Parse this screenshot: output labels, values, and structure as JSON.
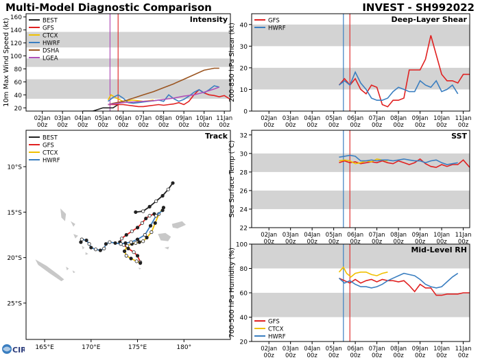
{
  "header": {
    "title_left": "Multi-Model Diagnostic Comparison",
    "title_right": "INVEST - SH992022"
  },
  "logo": {
    "text": "CIRA"
  },
  "colors": {
    "BEST": "#222222",
    "GFS": "#e02020",
    "CTCX": "#f0c000",
    "HWRF": "#3a7ec0",
    "DSHA": "#9b5520",
    "LGEA": "#b050b8",
    "band": "#d3d3d3",
    "vline_blue": "#3a7ec0",
    "vline_red": "#e03030",
    "vline_purple": "#b050b8",
    "land": "#c8c8c8"
  },
  "time_axis": {
    "ticks": [
      {
        "date": "02Jan",
        "hour": "00z",
        "x": 2
      },
      {
        "date": "03Jan",
        "hour": "00z",
        "x": 3
      },
      {
        "date": "04Jan",
        "hour": "00z",
        "x": 4
      },
      {
        "date": "05Jan",
        "hour": "00z",
        "x": 5
      },
      {
        "date": "06Jan",
        "hour": "00z",
        "x": 6
      },
      {
        "date": "07Jan",
        "hour": "00z",
        "x": 7
      },
      {
        "date": "08Jan",
        "hour": "00z",
        "x": 8
      },
      {
        "date": "09Jan",
        "hour": "00z",
        "x": 9
      },
      {
        "date": "10Jan",
        "hour": "00z",
        "x": 10
      },
      {
        "date": "11Jan",
        "hour": "00z",
        "x": 11
      }
    ]
  },
  "chart_data": [
    {
      "id": "intensity",
      "type": "line",
      "title": "Intensity",
      "ylabel": "10m Max Wind Speed (kt)",
      "xlim": [
        1.2,
        11.3
      ],
      "ylim": [
        15,
        165
      ],
      "yticks": [
        20,
        40,
        60,
        80,
        100,
        120,
        140,
        160
      ],
      "bands": [
        [
          34,
          64
        ],
        [
          83,
          96
        ],
        [
          113,
          137
        ]
      ],
      "vlines": [
        {
          "x": 5.35,
          "color": "vline_purple"
        },
        {
          "x": 5.75,
          "color": "vline_red"
        }
      ],
      "legend": [
        "BEST",
        "GFS",
        "CTCX",
        "HWRF",
        "DSHA",
        "LGEA"
      ],
      "series": [
        {
          "name": "BEST",
          "x": [
            4.0,
            4.5,
            5.0,
            5.5,
            5.75
          ],
          "y": [
            15,
            15,
            20,
            20,
            25
          ]
        },
        {
          "name": "GFS",
          "x": [
            5.25,
            5.5,
            5.75,
            6.0,
            6.25,
            6.5,
            6.75,
            7.0,
            7.25,
            7.5,
            7.75,
            8.0,
            8.25,
            8.5,
            8.75,
            9.0,
            9.25,
            9.5,
            9.75,
            10.0,
            10.25,
            10.5,
            10.75,
            11.0,
            11.3
          ],
          "y": [
            25,
            25,
            25,
            25,
            24,
            23,
            22,
            22,
            23,
            24,
            25,
            24,
            25,
            26,
            28,
            25,
            30,
            40,
            48,
            43,
            40,
            39,
            37,
            39,
            33
          ]
        },
        {
          "name": "CTCX",
          "x": [
            5.25,
            5.4,
            5.6,
            5.8,
            6.0,
            6.25,
            6.5,
            6.75,
            7.0,
            7.25,
            7.5
          ],
          "y": [
            32,
            40,
            36,
            33,
            30,
            31,
            32,
            31,
            30,
            31,
            32
          ]
        },
        {
          "name": "HWRF",
          "x": [
            5.25,
            5.5,
            5.75,
            6.0,
            6.25,
            6.5,
            6.75,
            7.0,
            7.25,
            7.5,
            7.75,
            8.0,
            8.25,
            8.5,
            8.75,
            9.0,
            9.25,
            9.5,
            9.75,
            10.0,
            10.25,
            10.5,
            10.75
          ],
          "y": [
            30,
            36,
            40,
            35,
            28,
            27,
            28,
            29,
            30,
            31,
            32,
            30,
            40,
            34,
            30,
            33,
            38,
            44,
            48,
            43,
            48,
            54,
            52
          ]
        },
        {
          "name": "DSHA",
          "x": [
            5.25,
            5.5,
            6.0,
            6.5,
            7.0,
            7.5,
            8.0,
            8.5,
            9.0,
            9.5,
            10.0,
            10.5,
            10.75
          ],
          "y": [
            25,
            27,
            30,
            35,
            40,
            45,
            51,
            57,
            64,
            71,
            78,
            81,
            81
          ]
        },
        {
          "name": "LGEA",
          "x": [
            5.25,
            5.5,
            6.0,
            6.5,
            7.0,
            7.5,
            8.0,
            8.5,
            9.0,
            9.5,
            10.0,
            10.5,
            10.75
          ],
          "y": [
            25,
            26,
            28,
            29,
            30,
            31,
            33,
            35,
            38,
            40,
            44,
            49,
            52
          ]
        }
      ]
    },
    {
      "id": "shear",
      "type": "line",
      "title": "Deep-Layer Shear",
      "ylabel": "200-850 hPa Shear (kt)",
      "xlim": [
        1.2,
        11.3
      ],
      "ylim": [
        0,
        45
      ],
      "yticks": [
        0,
        10,
        20,
        30,
        40
      ],
      "bands": [
        [
          10,
          20
        ],
        [
          30,
          40
        ]
      ],
      "vlines": [
        {
          "x": 5.45,
          "color": "vline_blue"
        },
        {
          "x": 5.75,
          "color": "vline_red"
        }
      ],
      "legend": [
        "GFS",
        "HWRF"
      ],
      "series": [
        {
          "name": "GFS",
          "x": [
            5.25,
            5.5,
            5.75,
            6.0,
            6.25,
            6.5,
            6.75,
            7.0,
            7.25,
            7.5,
            7.75,
            8.0,
            8.25,
            8.5,
            8.75,
            9.0,
            9.25,
            9.5,
            9.75,
            10.0,
            10.25,
            10.5,
            10.75,
            11.0,
            11.3
          ],
          "y": [
            12,
            15,
            12,
            15,
            10,
            8,
            12,
            11,
            3,
            2,
            5,
            5,
            6,
            19,
            19,
            19,
            24,
            35,
            26,
            17,
            14,
            14,
            13,
            17,
            17
          ]
        },
        {
          "name": "HWRF",
          "x": [
            5.25,
            5.5,
            5.75,
            6.0,
            6.25,
            6.5,
            6.75,
            7.0,
            7.25,
            7.5,
            7.75,
            8.0,
            8.25,
            8.5,
            8.75,
            9.0,
            9.25,
            9.5,
            9.75,
            10.0,
            10.25,
            10.5,
            10.75
          ],
          "y": [
            12,
            14,
            12,
            18,
            13,
            10,
            6,
            5,
            5,
            6,
            9,
            11,
            10,
            9,
            9,
            14,
            12,
            11,
            14,
            9,
            10,
            12,
            8
          ]
        }
      ]
    },
    {
      "id": "sst",
      "type": "line",
      "title": "SST",
      "ylabel": "Sea Surface Temp (°C)",
      "xlim": [
        1.2,
        11.3
      ],
      "ylim": [
        22,
        32.5
      ],
      "yticks": [
        22,
        24,
        26,
        28,
        30,
        32
      ],
      "bands": [
        [
          24,
          26
        ],
        [
          28,
          30
        ]
      ],
      "vlines": [
        {
          "x": 5.45,
          "color": "vline_blue"
        },
        {
          "x": 5.75,
          "color": "vline_red"
        }
      ],
      "legend": [
        "GFS",
        "CTCX",
        "HWRF"
      ],
      "series": [
        {
          "name": "GFS",
          "x": [
            5.25,
            5.5,
            5.75,
            6.0,
            6.25,
            6.5,
            6.75,
            7.0,
            7.25,
            7.5,
            7.75,
            8.0,
            8.25,
            8.5,
            8.75,
            9.0,
            9.25,
            9.5,
            9.75,
            10.0,
            10.25,
            10.5,
            10.75,
            11.0,
            11.3
          ],
          "y": [
            29.0,
            29.2,
            29.0,
            29.1,
            28.9,
            29.0,
            29.1,
            29.0,
            29.2,
            29.0,
            28.9,
            29.2,
            29.0,
            28.8,
            29.0,
            29.4,
            28.9,
            28.6,
            28.5,
            28.8,
            28.6,
            28.8,
            28.8,
            29.3,
            28.5
          ]
        },
        {
          "name": "CTCX",
          "x": [
            5.25,
            5.5,
            5.75,
            6.0,
            6.25,
            6.5,
            6.75,
            7.0,
            7.25,
            7.5
          ],
          "y": [
            29.2,
            29.3,
            29.2,
            28.9,
            29.0,
            29.2,
            29.1,
            29.4,
            29.3,
            29.2
          ]
        },
        {
          "name": "HWRF",
          "x": [
            5.25,
            5.5,
            5.75,
            6.0,
            6.25,
            6.5,
            6.75,
            7.0,
            7.25,
            7.5,
            7.75,
            8.0,
            8.25,
            8.5,
            8.75,
            9.0,
            9.25,
            9.5,
            9.75,
            10.0,
            10.25,
            10.5,
            10.75
          ],
          "y": [
            29.6,
            29.7,
            29.8,
            29.7,
            29.2,
            29.2,
            29.3,
            29.2,
            29.3,
            29.3,
            29.2,
            29.3,
            29.4,
            29.3,
            29.2,
            29.2,
            29.0,
            29.2,
            29.3,
            29.0,
            28.8,
            28.9,
            29.0
          ]
        }
      ]
    },
    {
      "id": "rh",
      "type": "line",
      "title": "Mid-Level RH",
      "ylabel": "700-500 hPa Humidity (%)",
      "xlim": [
        1.2,
        11.3
      ],
      "ylim": [
        20,
        100
      ],
      "yticks": [
        20,
        40,
        60,
        80,
        100
      ],
      "bands": [
        [
          40,
          60
        ],
        [
          80,
          100
        ]
      ],
      "vlines": [
        {
          "x": 5.45,
          "color": "vline_blue"
        },
        {
          "x": 5.75,
          "color": "vline_red"
        }
      ],
      "legend": [
        "GFS",
        "CTCX",
        "HWRF"
      ],
      "series": [
        {
          "name": "GFS",
          "x": [
            5.25,
            5.5,
            5.75,
            6.0,
            6.25,
            6.5,
            6.75,
            7.0,
            7.25,
            7.5,
            7.75,
            8.0,
            8.25,
            8.5,
            8.75,
            9.0,
            9.25,
            9.5,
            9.75,
            10.0,
            10.25,
            10.5,
            10.75,
            11.0,
            11.3
          ],
          "y": [
            72,
            70,
            68,
            71,
            68,
            70,
            71,
            69,
            71,
            70,
            70,
            69,
            70,
            66,
            61,
            67,
            64,
            64,
            58,
            58,
            59,
            59,
            59,
            60,
            60
          ]
        },
        {
          "name": "CTCX",
          "x": [
            5.25,
            5.45,
            5.6,
            5.8,
            6.0,
            6.25,
            6.5,
            6.75,
            7.0,
            7.25,
            7.5
          ],
          "y": [
            77,
            81,
            76,
            73,
            76,
            77,
            77,
            75,
            74,
            76,
            77
          ]
        },
        {
          "name": "HWRF",
          "x": [
            5.25,
            5.5,
            5.75,
            6.0,
            6.25,
            6.5,
            6.75,
            7.0,
            7.25,
            7.5,
            7.75,
            8.0,
            8.25,
            8.5,
            8.75,
            9.0,
            9.25,
            9.5,
            9.75,
            10.0,
            10.25,
            10.5,
            10.75
          ],
          "y": [
            72,
            68,
            70,
            67,
            65,
            65,
            64,
            65,
            67,
            70,
            72,
            74,
            76,
            75,
            74,
            71,
            67,
            65,
            64,
            65,
            69,
            73,
            76
          ]
        }
      ]
    },
    {
      "id": "track",
      "type": "scatter",
      "title": "Track",
      "xlim": [
        163,
        185
      ],
      "ylim": [
        -29,
        -6
      ],
      "xticks": [
        {
          "v": 165,
          "label": "165°E"
        },
        {
          "v": 170,
          "label": "170°E"
        },
        {
          "v": 175,
          "label": "175°E"
        },
        {
          "v": 180,
          "label": "180°"
        }
      ],
      "yticks": [
        {
          "v": -10,
          "label": "10°S"
        },
        {
          "v": -15,
          "label": "15°S"
        },
        {
          "v": -20,
          "label": "20°S"
        },
        {
          "v": -25,
          "label": "25°S"
        }
      ],
      "legend": [
        "BEST",
        "GFS",
        "CTCX",
        "HWRF"
      ],
      "series": [
        {
          "name": "BEST",
          "lon": [
            178.8,
            178.3,
            177.7,
            177.0,
            176.3,
            175.6,
            174.8
          ],
          "lat": [
            -11.8,
            -12.5,
            -13.2,
            -13.8,
            -14.4,
            -14.9,
            -15.0
          ],
          "filled": [
            1,
            0,
            1,
            0,
            1,
            0,
            1
          ]
        },
        {
          "name": "GFS",
          "lon": [
            176.8,
            176.3,
            175.9,
            175.5,
            175.0,
            174.4,
            173.8,
            173.3,
            173.1,
            173.5,
            174.0,
            174.6,
            175.0,
            175.3
          ],
          "lat": [
            -15.2,
            -15.4,
            -15.7,
            -16.2,
            -16.7,
            -17.1,
            -17.5,
            -17.9,
            -18.3,
            -18.6,
            -19.0,
            -19.4,
            -19.8,
            -20.5
          ],
          "filled": [
            1,
            0,
            1,
            0,
            1,
            0,
            1,
            0,
            1,
            0,
            1,
            0,
            1,
            0
          ]
        },
        {
          "name": "CTCX",
          "lon": [
            177.8,
            177.3,
            176.9,
            176.5,
            176.0,
            175.6,
            175.2,
            174.8,
            174.4,
            173.9,
            173.6,
            173.8,
            174.3,
            174.9,
            175.3
          ],
          "lat": [
            -14.5,
            -15.2,
            -16.2,
            -17.2,
            -17.8,
            -18.2,
            -18.3,
            -18.4,
            -18.5,
            -18.7,
            -19.3,
            -19.8,
            -20.1,
            -20.4,
            -20.6
          ],
          "filled": [
            1,
            0,
            1,
            0,
            1,
            0,
            1,
            0,
            1,
            0,
            1,
            0,
            1,
            0,
            1
          ]
        },
        {
          "name": "HWRF",
          "lon": [
            177.7,
            177.0,
            176.4,
            175.8,
            175.0,
            174.3,
            173.7,
            173.2,
            172.6,
            172.0,
            171.6,
            171.4,
            171.0,
            170.5,
            170.0,
            169.8,
            169.5,
            169.0,
            168.9
          ],
          "lat": [
            -14.8,
            -15.4,
            -16.5,
            -17.5,
            -18.0,
            -18.3,
            -18.4,
            -18.5,
            -18.4,
            -18.3,
            -18.5,
            -19.0,
            -19.2,
            -19.1,
            -18.9,
            -18.5,
            -18.1,
            -18.0,
            -18.3
          ],
          "filled": [
            1,
            0,
            1,
            0,
            1,
            0,
            1,
            0,
            1,
            0,
            1,
            0,
            1,
            0,
            1,
            0,
            1,
            0,
            1
          ]
        }
      ]
    }
  ]
}
